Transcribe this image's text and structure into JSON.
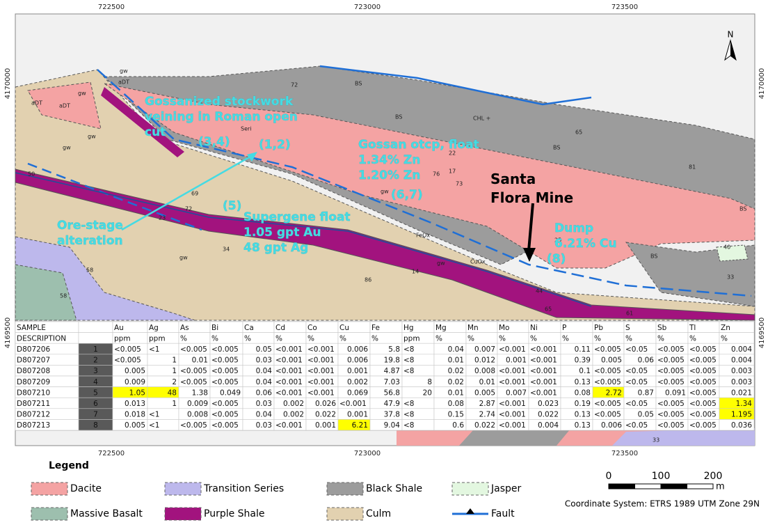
{
  "axis_labels": {
    "top": [
      "722500",
      "723000",
      "723500"
    ],
    "bottom": [
      "722500",
      "723000",
      "723500"
    ],
    "left": [
      "4170000",
      "4169500"
    ],
    "right": [
      "4170000",
      "4169500"
    ]
  },
  "north": "N",
  "annotations": {
    "gossan_stockwork": [
      "Gossanized stockwork",
      "veining in Roman open",
      "cut"
    ],
    "samples_3_4": "(3,4)",
    "samples_1_2": "(1,2)",
    "gossan_outcrop": [
      "Gossan otcp, float",
      "1.34% Zn",
      "1.20% Zn"
    ],
    "samples_6_7": "(6,7)",
    "mine": [
      "Santa",
      "Flora Mine"
    ],
    "dump": [
      "Dump",
      "6.21% Cu"
    ],
    "sample_8": "(8)",
    "sample_5": "(5)",
    "supergene": [
      "Supergene float",
      "1.05 gpt Au",
      "48 gpt Ag"
    ],
    "ore_stage": [
      "Ore-stage",
      "alteration"
    ]
  },
  "map_labels": [
    "aDT",
    "aDT",
    "aDT",
    "gw",
    "gw",
    "gw",
    "gw",
    "gw",
    "gw",
    "gw",
    "BS",
    "BS",
    "BS",
    "BS",
    "BS",
    "FeOx",
    "CuOx",
    "Seri",
    "CHL +",
    "58",
    "33",
    "72",
    "50",
    "69",
    "72",
    "23",
    "34",
    "22",
    "17",
    "73",
    "76",
    "14",
    "86",
    "65",
    "81",
    "25",
    "40",
    "33",
    "44",
    "65",
    "61",
    "58"
  ],
  "table": {
    "header": [
      "SAMPLE",
      "",
      "Au",
      "Ag",
      "As",
      "Bi",
      "Ca",
      "Cd",
      "Co",
      "Cu",
      "Fe",
      "Hg",
      "Mg",
      "Mn",
      "Mo",
      "Ni",
      "P",
      "Pb",
      "S",
      "Sb",
      "Tl",
      "Zn"
    ],
    "units": [
      "DESCRIPTION",
      "",
      "ppm",
      "ppm",
      "%",
      "%",
      "%",
      "%",
      "%",
      "%",
      "%",
      "ppm",
      "%",
      "%",
      "%",
      "%",
      "%",
      "%",
      "%",
      "%",
      "%",
      "%"
    ],
    "rows": [
      [
        "D807206",
        "1",
        "<0.005",
        "<1",
        "<0.005",
        "<0.005",
        "0.05",
        "<0.001",
        "<0.001",
        "0.006",
        "5.8",
        "<8",
        "0.04",
        "0.007",
        "<0.001",
        "<0.001",
        "0.11",
        "<0.005",
        "<0.05",
        "<0.005",
        "<0.005",
        "0.004"
      ],
      [
        "D807207",
        "2",
        "<0.005",
        "1",
        "0.01",
        "<0.005",
        "0.03",
        "<0.001",
        "<0.001",
        "0.006",
        "19.8",
        "<8",
        "0.01",
        "0.012",
        "0.001",
        "<0.001",
        "0.39",
        "0.005",
        "0.06",
        "<0.005",
        "<0.005",
        "0.004"
      ],
      [
        "D807208",
        "3",
        "0.005",
        "1",
        "<0.005",
        "<0.005",
        "0.04",
        "<0.001",
        "<0.001",
        "0.001",
        "4.87",
        "<8",
        "0.02",
        "0.008",
        "<0.001",
        "<0.001",
        "0.1",
        "<0.005",
        "<0.05",
        "<0.005",
        "<0.005",
        "0.003"
      ],
      [
        "D807209",
        "4",
        "0.009",
        "2",
        "<0.005",
        "<0.005",
        "0.04",
        "<0.001",
        "<0.001",
        "0.002",
        "7.03",
        "8",
        "0.02",
        "0.01",
        "<0.001",
        "<0.001",
        "0.13",
        "<0.005",
        "<0.05",
        "<0.005",
        "<0.005",
        "0.003"
      ],
      [
        "D807210",
        "5",
        "1.05",
        "48",
        "1.38",
        "0.049",
        "0.06",
        "<0.001",
        "<0.001",
        "0.069",
        "56.8",
        "20",
        "0.01",
        "0.005",
        "0.007",
        "<0.001",
        "0.08",
        "2.72",
        "0.87",
        "0.091",
        "<0.005",
        "0.021"
      ],
      [
        "D807211",
        "6",
        "0.013",
        "1",
        "0.009",
        "<0.005",
        "0.03",
        "0.002",
        "0.026",
        "<0.001",
        "47.9",
        "<8",
        "0.08",
        "2.87",
        "<0.001",
        "0.023",
        "0.19",
        "<0.005",
        "<0.05",
        "<0.005",
        "<0.005",
        "1.34"
      ],
      [
        "D807212",
        "7",
        "0.018",
        "<1",
        "0.008",
        "<0.005",
        "0.04",
        "0.002",
        "0.022",
        "0.001",
        "37.8",
        "<8",
        "0.15",
        "2.74",
        "<0.001",
        "0.022",
        "0.13",
        "<0.005",
        "0.05",
        "<0.005",
        "<0.005",
        "1.195"
      ],
      [
        "D807213",
        "8",
        "0.005",
        "<1",
        "<0.005",
        "<0.005",
        "0.03",
        "<0.001",
        "0.001",
        "6.21",
        "9.04",
        "<8",
        "0.6",
        "0.022",
        "<0.001",
        "0.004",
        "0.13",
        "0.006",
        "<0.05",
        "<0.005",
        "<0.005",
        "0.036"
      ]
    ],
    "highlight_color": "#ffff00",
    "highlight": [
      [
        4,
        2
      ],
      [
        4,
        3
      ],
      [
        4,
        17
      ],
      [
        5,
        21
      ],
      [
        6,
        21
      ],
      [
        7,
        9
      ]
    ]
  },
  "legend": {
    "title": "Legend",
    "items": [
      {
        "label": "Dacite",
        "color": "#f4a3a3"
      },
      {
        "label": "Massive Basalt",
        "color": "#9dbfae"
      },
      {
        "label": "Transition Series",
        "color": "#bdb8ec"
      },
      {
        "label": "Purple Shale",
        "color": "#a2137e"
      },
      {
        "label": "Black Shale",
        "color": "#9c9c9c"
      },
      {
        "label": "Culm",
        "color": "#e2d1b0"
      },
      {
        "label": "Jasper",
        "color": "#e3f7e0"
      },
      {
        "label": "Fault",
        "color": "#1f6fd6"
      }
    ]
  },
  "scale_bar": {
    "ticks": [
      "0",
      "100",
      "200"
    ],
    "unit": "m"
  },
  "coordinate_system": "Coordinate System: ETRS 1989 UTM Zone 29N"
}
